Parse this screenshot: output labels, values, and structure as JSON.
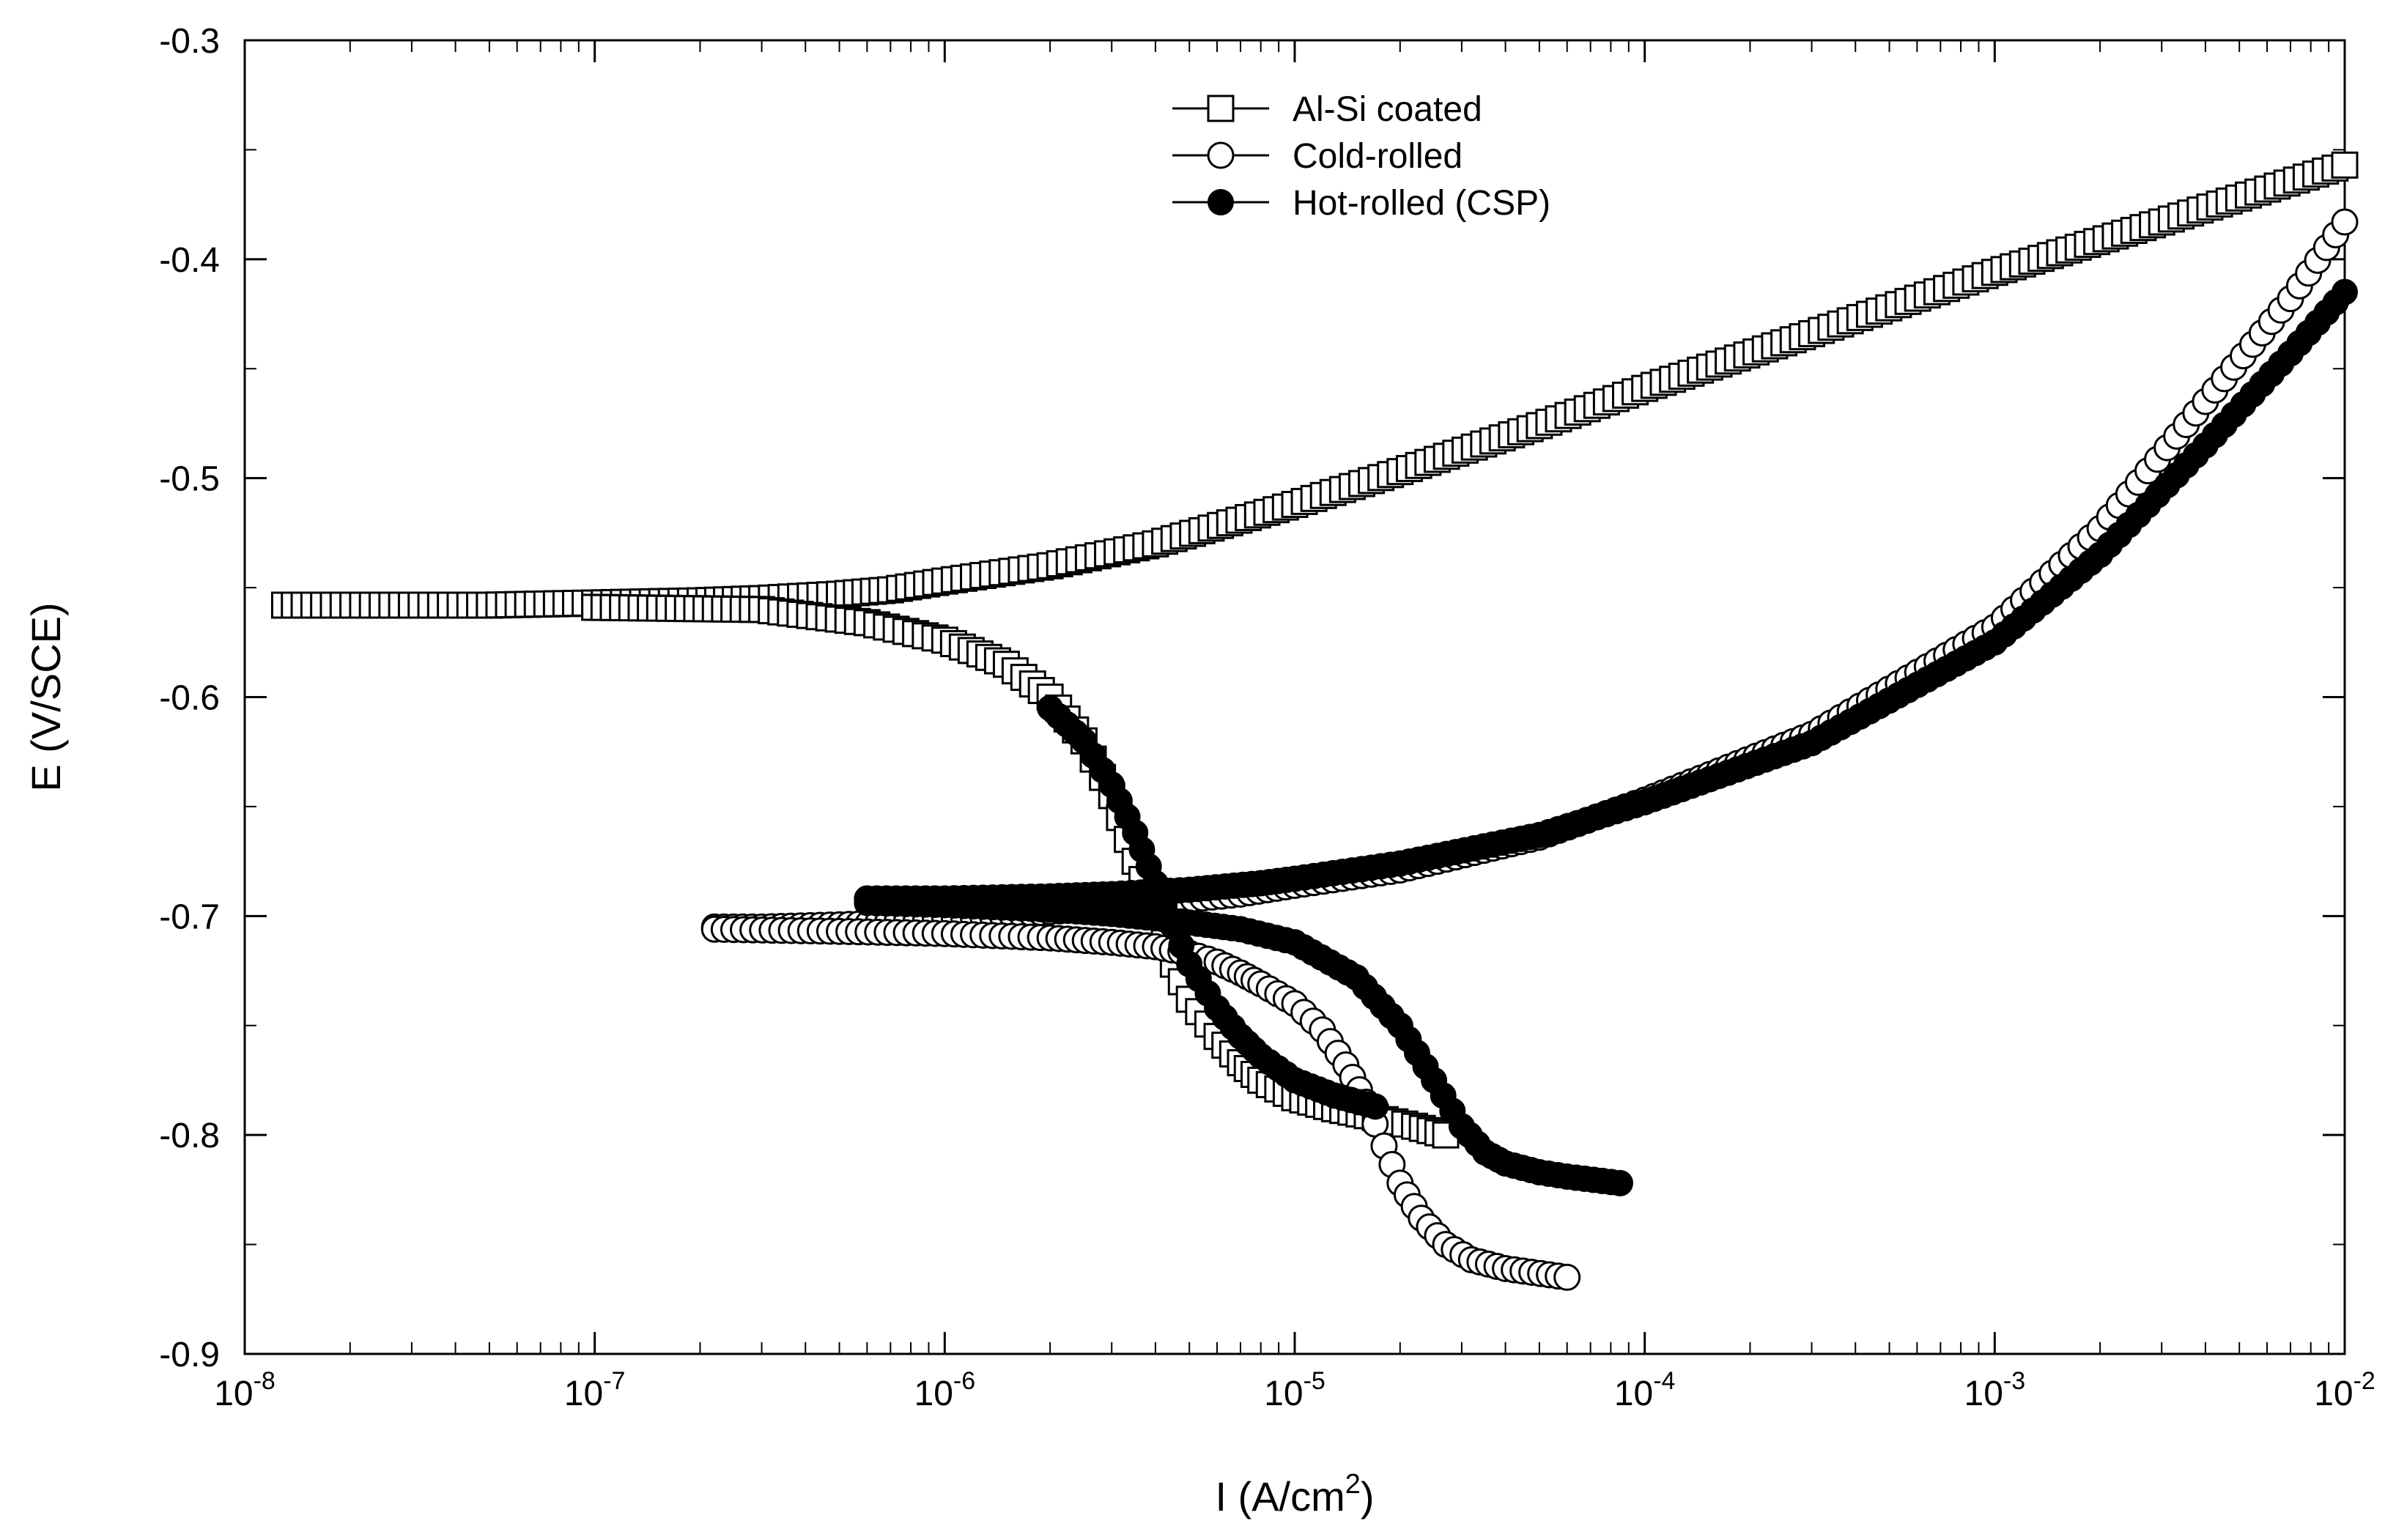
{
  "chart_data": {
    "type": "line",
    "title": "",
    "x_scale": "log",
    "xlim": [
      1e-08,
      0.01
    ],
    "ylim": [
      -0.9,
      -0.3
    ],
    "grid": false,
    "legend_position": "top-center",
    "xlabel": {
      "base": "I (A/cm",
      "sup": "2",
      "tail": ")"
    },
    "ylabel": "E (V/SCE)",
    "x_ticks": [
      {
        "value": 1e-08,
        "base": "10",
        "exp": "-8"
      },
      {
        "value": 1e-07,
        "base": "10",
        "exp": "-7"
      },
      {
        "value": 1e-06,
        "base": "10",
        "exp": "-6"
      },
      {
        "value": 1e-05,
        "base": "10",
        "exp": "-5"
      },
      {
        "value": 0.0001,
        "base": "10",
        "exp": "-4"
      },
      {
        "value": 0.001,
        "base": "10",
        "exp": "-3"
      },
      {
        "value": 0.01,
        "base": "10",
        "exp": "-2"
      }
    ],
    "y_ticks": [
      {
        "value": -0.9,
        "label": "-0.9"
      },
      {
        "value": -0.8,
        "label": "-0.8"
      },
      {
        "value": -0.7,
        "label": "-0.7"
      },
      {
        "value": -0.6,
        "label": "-0.6"
      },
      {
        "value": -0.5,
        "label": "-0.5"
      },
      {
        "value": -0.4,
        "label": "-0.4"
      },
      {
        "value": -0.3,
        "label": "-0.3"
      }
    ],
    "series": [
      {
        "name": "Al-Si coated",
        "marker": "open-square",
        "color": "#000000",
        "branches": [
          {
            "x": [
              1.3e-08,
              5e-08,
              1e-07,
              2e-07,
              3e-07,
              5e-07,
              7e-07,
              1e-06,
              2e-06,
              4e-06,
              1e-05,
              2e-05,
              5e-05,
              0.0001,
              0.0003,
              0.001,
              0.003,
              0.01
            ],
            "y": [
              -0.558,
              -0.558,
              -0.557,
              -0.556,
              -0.555,
              -0.553,
              -0.551,
              -0.547,
              -0.54,
              -0.53,
              -0.512,
              -0.497,
              -0.476,
              -0.459,
              -0.434,
              -0.406,
              -0.383,
              -0.357
            ]
          },
          {
            "x": [
              1e-07,
              3e-07,
              6e-07,
              1e-06,
              1.5e-06,
              2e-06,
              2.5e-06,
              3e-06,
              3.5e-06,
              4e-06,
              4.5e-06,
              5e-06,
              6e-06,
              7e-06,
              8e-06,
              1e-05,
              1.3e-05,
              1.7e-05,
              2.2e-05,
              2.7e-05
            ],
            "y": [
              -0.559,
              -0.56,
              -0.566,
              -0.574,
              -0.585,
              -0.6,
              -0.62,
              -0.645,
              -0.675,
              -0.7,
              -0.722,
              -0.738,
              -0.755,
              -0.767,
              -0.775,
              -0.783,
              -0.788,
              -0.792,
              -0.796,
              -0.8
            ]
          }
        ]
      },
      {
        "name": "Cold-rolled",
        "marker": "open-circle",
        "color": "#000000",
        "branches": [
          {
            "x": [
              2.2e-07,
              3e-07,
              5e-07,
              1e-06,
              2e-06,
              4e-06,
              7e-06,
              1e-05,
              2e-05,
              5e-05,
              0.0001,
              0.0003,
              0.001,
              0.002,
              0.004,
              0.007,
              0.01
            ],
            "y": [
              -0.705,
              -0.705,
              -0.704,
              -0.702,
              -0.698,
              -0.694,
              -0.69,
              -0.686,
              -0.679,
              -0.664,
              -0.647,
              -0.617,
              -0.568,
              -0.523,
              -0.465,
              -0.418,
              -0.383
            ]
          },
          {
            "x": [
              2.2e-07,
              5e-07,
              1e-06,
              2e-06,
              3e-06,
              4e-06,
              5e-06,
              6e-06,
              7e-06,
              8e-06,
              1e-05,
              1.2e-05,
              1.4e-05,
              1.6e-05,
              1.8e-05,
              2e-05,
              2.3e-05,
              2.7e-05,
              3.2e-05,
              4e-05,
              6e-05
            ],
            "y": [
              -0.706,
              -0.707,
              -0.708,
              -0.71,
              -0.712,
              -0.714,
              -0.717,
              -0.721,
              -0.726,
              -0.731,
              -0.74,
              -0.752,
              -0.768,
              -0.785,
              -0.805,
              -0.822,
              -0.838,
              -0.85,
              -0.857,
              -0.861,
              -0.865
            ]
          }
        ]
      },
      {
        "name": "Hot-rolled (CSP)",
        "marker": "filled-circle",
        "color": "#000000",
        "branches": [
          {
            "x": [
              6e-07,
              1e-06,
              2e-06,
              3e-06,
              5e-06,
              8e-06,
              1e-05,
              2e-05,
              5e-05,
              0.0001,
              0.0003,
              0.001,
              0.002,
              0.004,
              0.007,
              0.01
            ],
            "y": [
              -0.692,
              -0.692,
              -0.691,
              -0.69,
              -0.688,
              -0.685,
              -0.683,
              -0.676,
              -0.663,
              -0.648,
              -0.621,
              -0.575,
              -0.535,
              -0.485,
              -0.443,
              -0.415
            ]
          },
          {
            "x": [
              6e-07,
              1e-06,
              2e-06,
              3e-06,
              4e-06,
              5e-06,
              7e-06,
              1e-05,
              1.5e-05,
              2e-05,
              2.5e-05,
              3e-05,
              3.5e-05,
              4e-05,
              5e-05,
              6e-05,
              8.5e-05
            ],
            "y": [
              -0.694,
              -0.695,
              -0.697,
              -0.699,
              -0.701,
              -0.703,
              -0.706,
              -0.712,
              -0.728,
              -0.75,
              -0.775,
              -0.796,
              -0.808,
              -0.813,
              -0.817,
              -0.819,
              -0.822
            ]
          },
          {
            "x": [
              2e-06,
              2.5e-06,
              3e-06,
              3.5e-06,
              4e-06,
              4.5e-06,
              5e-06,
              6e-06,
              7e-06,
              8e-06,
              1e-05,
              1.3e-05,
              1.7e-05
            ],
            "y": [
              -0.605,
              -0.62,
              -0.64,
              -0.662,
              -0.685,
              -0.705,
              -0.722,
              -0.742,
              -0.755,
              -0.764,
              -0.775,
              -0.782,
              -0.787
            ]
          }
        ]
      }
    ]
  }
}
